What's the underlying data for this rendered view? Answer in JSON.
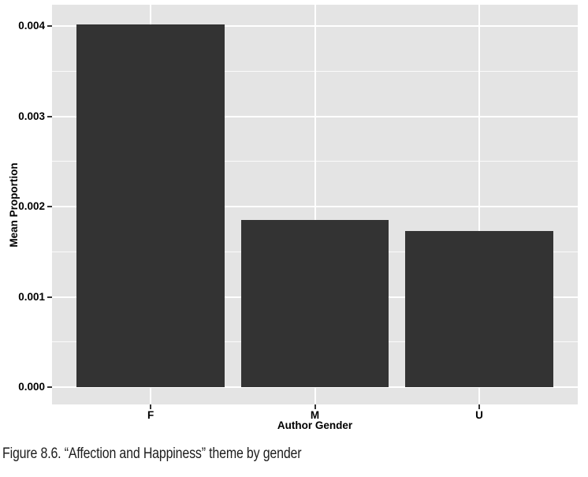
{
  "figure": {
    "caption": "Figure 8.6. “Affection and Happiness” theme by gender"
  },
  "chart_data": {
    "type": "bar",
    "title": "",
    "categories": [
      "F",
      "M",
      "U"
    ],
    "values": [
      0.00402,
      0.00185,
      0.00173
    ],
    "xlabel": "Author Gender",
    "ylabel": "Mean Proportion",
    "yticks": [
      0,
      0.001,
      0.002,
      0.003,
      0.004
    ],
    "ytick_labels": [
      "0.000",
      "0.001",
      "0.002",
      "0.003",
      "0.004"
    ],
    "yminor": [
      0.0005,
      0.0015,
      0.0025,
      0.0035
    ],
    "ylim": [
      -0.00019,
      0.004236
    ],
    "legend": "none",
    "grid": "white major and minor horizontal gridlines, white vertical gridline at each category center, on gray panel",
    "colors": {
      "bar": "#333333",
      "panel_bg": "#E4E4E4",
      "grid_major": "#FFFFFF",
      "grid_minor": "#FFFFFF",
      "tick_mark": "#333333",
      "axis_text": "#000000",
      "background": "#FFFFFF"
    }
  }
}
